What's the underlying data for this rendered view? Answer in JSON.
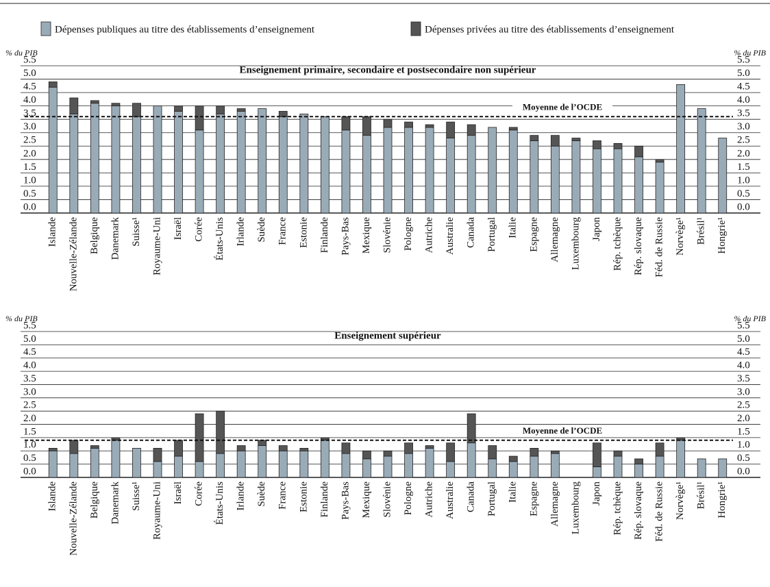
{
  "chart_data": [
    {
      "type": "bar",
      "stacked": true,
      "title": "Enseignement primaire, secondaire et postsecondaire non supérieur",
      "y_label": "% du PIB",
      "categories": [
        "Islande",
        "Nouvelle-Zélande",
        "Belgique",
        "Danemark",
        "Suisse¹",
        "Royaume-Uni",
        "Israël",
        "Corée",
        "États-Unis",
        "Irlande",
        "Suède",
        "France",
        "Estonie",
        "Finlande",
        "Pays-Bas",
        "Mexique",
        "Slovénie",
        "Pologne",
        "Autriche",
        "Australie",
        "Canada",
        "Portugal",
        "Italie",
        "Espagne",
        "Allemagne",
        "Luxembourg",
        "Japon",
        "Rép. tchèque",
        "Rép. slovaque",
        "Féd. de Russie",
        "Norvège¹",
        "Brésil¹",
        "Hongrie¹"
      ],
      "series": [
        {
          "name": "Dépenses publiques au titre des établissements d’enseignement",
          "color": "#9aabb8",
          "values": [
            4.7,
            3.7,
            4.1,
            4.0,
            3.6,
            4.0,
            3.8,
            3.1,
            3.7,
            3.8,
            3.9,
            3.6,
            3.7,
            3.6,
            3.1,
            2.9,
            3.2,
            3.2,
            3.2,
            2.8,
            2.9,
            3.2,
            3.1,
            2.7,
            2.5,
            2.7,
            2.4,
            2.4,
            2.1,
            1.9,
            4.8,
            3.9,
            2.8
          ]
        },
        {
          "name": "Dépenses privées au titre des établissements d’enseignement",
          "color": "#555555",
          "values": [
            0.2,
            0.6,
            0.1,
            0.1,
            0.5,
            0,
            0.2,
            0.9,
            0.3,
            0.1,
            0,
            0.2,
            0,
            0,
            0.5,
            0.7,
            0.3,
            0.2,
            0.1,
            0.6,
            0.4,
            0,
            0.1,
            0.2,
            0.4,
            0.1,
            0.3,
            0.2,
            0.4,
            0.1,
            0,
            0,
            0
          ]
        }
      ],
      "reference_line": {
        "label": "Moyenne de l’OCDE",
        "value": 3.6
      },
      "ylim": [
        0,
        5.5
      ],
      "yticks": [
        {
          "value": 0,
          "label": "0.0"
        },
        0.5,
        {
          "value": 1,
          "label": "1.0"
        },
        1.5,
        {
          "value": 2,
          "label": "2.0"
        },
        2.5,
        {
          "value": 3,
          "label": "3.0"
        },
        3.5,
        {
          "value": 4,
          "label": "4.0"
        },
        4.5,
        {
          "value": 5,
          "label": "5.0"
        },
        5.5
      ],
      "grid": true
    },
    {
      "type": "bar",
      "stacked": true,
      "title": "Enseignement supérieur",
      "y_label": "% du PIB",
      "categories": [
        "Islande",
        "Nouvelle-Zélande",
        "Belgique",
        "Danemark",
        "Suisse¹",
        "Royaume-Uni",
        "Israël",
        "Corée",
        "États-Unis",
        "Irlande",
        "Suède",
        "France",
        "Estonie",
        "Finlande",
        "Pays-Bas",
        "Mexique",
        "Slovénie",
        "Pologne",
        "Autriche",
        "Australie",
        "Canada",
        "Portugal",
        "Italie",
        "Espagne",
        "Allemagne",
        "Luxembourg",
        "Japon",
        "Rép. tchèque",
        "Rép. slovaque",
        "Féd. de Russie",
        "Norvège¹",
        "Brésil¹",
        "Hongrie¹"
      ],
      "series": [
        {
          "name": "Dépenses publiques au titre des établissements d’enseignement",
          "color": "#9aabb8",
          "values": [
            1.0,
            0.9,
            1.1,
            1.4,
            1.1,
            0.6,
            0.8,
            0.6,
            0.9,
            1.0,
            1.2,
            1.0,
            1.0,
            1.4,
            0.9,
            0.7,
            0.8,
            0.9,
            1.1,
            0.6,
            1.3,
            0.7,
            0.6,
            0.8,
            0.9,
            null,
            0.4,
            0.8,
            0.5,
            0.8,
            1.4,
            0.7,
            0.7
          ]
        },
        {
          "name": "Dépenses privées au titre des établissements d’enseignement",
          "color": "#555555",
          "values": [
            0.1,
            0.5,
            0.1,
            0.1,
            0,
            0.5,
            0.6,
            1.8,
            1.6,
            0.2,
            0.2,
            0.2,
            0.1,
            0.1,
            0.4,
            0.3,
            0.2,
            0.4,
            0.1,
            0.7,
            1.1,
            0.5,
            0.2,
            0.3,
            0.1,
            null,
            0.9,
            0.2,
            0.2,
            0.5,
            0.1,
            0,
            0
          ]
        }
      ],
      "reference_line": {
        "label": "Moyenne de l’OCDE",
        "value": 1.4
      },
      "ylim": [
        0,
        5.5
      ],
      "yticks": [
        {
          "value": 0,
          "label": "0.0"
        },
        0.5,
        {
          "value": 1,
          "label": "1.0"
        },
        1.5,
        {
          "value": 2,
          "label": "2.0"
        },
        2.5,
        {
          "value": 3,
          "label": "3.0"
        },
        3.5,
        {
          "value": 4,
          "label": "4.0"
        },
        4.5,
        {
          "value": 5,
          "label": "5.0"
        },
        5.5
      ],
      "grid": true
    }
  ]
}
